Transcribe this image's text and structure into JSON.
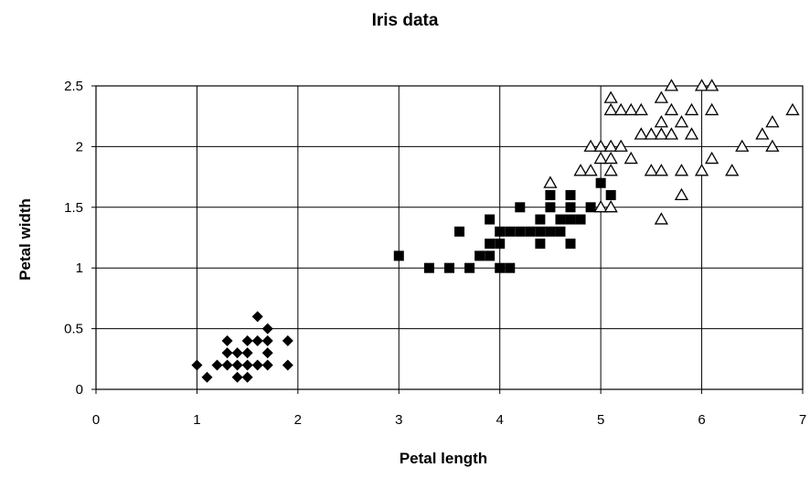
{
  "chart_data": {
    "type": "scatter",
    "title": "Iris data",
    "xlabel": "Petal length",
    "ylabel": "Petal width",
    "xlim": [
      0,
      7
    ],
    "ylim": [
      0,
      2.5
    ],
    "xticks": [
      "0",
      "1",
      "2",
      "3",
      "4",
      "5",
      "6",
      "7"
    ],
    "yticks": [
      "0",
      "0.5",
      "1",
      "1.5",
      "2",
      "2.5"
    ],
    "grid": true,
    "legend": "none",
    "series": [
      {
        "marker": "diamond-filled",
        "color": "#000000",
        "points": [
          [
            1.0,
            0.2
          ],
          [
            1.1,
            0.1
          ],
          [
            1.2,
            0.2
          ],
          [
            1.3,
            0.2
          ],
          [
            1.3,
            0.3
          ],
          [
            1.3,
            0.4
          ],
          [
            1.4,
            0.1
          ],
          [
            1.4,
            0.2
          ],
          [
            1.4,
            0.3
          ],
          [
            1.5,
            0.1
          ],
          [
            1.5,
            0.2
          ],
          [
            1.5,
            0.3
          ],
          [
            1.5,
            0.4
          ],
          [
            1.6,
            0.2
          ],
          [
            1.6,
            0.4
          ],
          [
            1.6,
            0.6
          ],
          [
            1.7,
            0.2
          ],
          [
            1.7,
            0.3
          ],
          [
            1.7,
            0.4
          ],
          [
            1.7,
            0.5
          ],
          [
            1.9,
            0.2
          ],
          [
            1.9,
            0.4
          ]
        ]
      },
      {
        "marker": "square-filled",
        "color": "#000000",
        "points": [
          [
            3.0,
            1.1
          ],
          [
            3.3,
            1.0
          ],
          [
            3.5,
            1.0
          ],
          [
            3.6,
            1.3
          ],
          [
            3.7,
            1.0
          ],
          [
            3.8,
            1.1
          ],
          [
            3.9,
            1.1
          ],
          [
            3.9,
            1.2
          ],
          [
            3.9,
            1.4
          ],
          [
            4.0,
            1.0
          ],
          [
            4.0,
            1.2
          ],
          [
            4.0,
            1.3
          ],
          [
            4.1,
            1.0
          ],
          [
            4.1,
            1.3
          ],
          [
            4.2,
            1.3
          ],
          [
            4.2,
            1.5
          ],
          [
            4.3,
            1.3
          ],
          [
            4.4,
            1.2
          ],
          [
            4.4,
            1.3
          ],
          [
            4.4,
            1.4
          ],
          [
            4.5,
            1.3
          ],
          [
            4.5,
            1.5
          ],
          [
            4.5,
            1.6
          ],
          [
            4.6,
            1.3
          ],
          [
            4.6,
            1.4
          ],
          [
            4.7,
            1.2
          ],
          [
            4.7,
            1.4
          ],
          [
            4.7,
            1.5
          ],
          [
            4.7,
            1.6
          ],
          [
            4.8,
            1.4
          ],
          [
            4.9,
            1.5
          ],
          [
            5.0,
            1.7
          ],
          [
            5.1,
            1.6
          ]
        ]
      },
      {
        "marker": "triangle-open",
        "color": "#000000",
        "points": [
          [
            4.5,
            1.7
          ],
          [
            4.8,
            1.8
          ],
          [
            4.9,
            1.8
          ],
          [
            4.9,
            2.0
          ],
          [
            5.0,
            1.5
          ],
          [
            5.0,
            1.9
          ],
          [
            5.0,
            2.0
          ],
          [
            5.1,
            1.5
          ],
          [
            5.1,
            1.8
          ],
          [
            5.1,
            1.9
          ],
          [
            5.1,
            2.0
          ],
          [
            5.1,
            2.3
          ],
          [
            5.1,
            2.4
          ],
          [
            5.2,
            2.0
          ],
          [
            5.2,
            2.3
          ],
          [
            5.3,
            1.9
          ],
          [
            5.3,
            2.3
          ],
          [
            5.4,
            2.1
          ],
          [
            5.4,
            2.3
          ],
          [
            5.5,
            1.8
          ],
          [
            5.5,
            2.1
          ],
          [
            5.6,
            1.4
          ],
          [
            5.6,
            1.8
          ],
          [
            5.6,
            2.1
          ],
          [
            5.6,
            2.2
          ],
          [
            5.6,
            2.4
          ],
          [
            5.7,
            2.1
          ],
          [
            5.7,
            2.3
          ],
          [
            5.7,
            2.5
          ],
          [
            5.8,
            1.6
          ],
          [
            5.8,
            1.8
          ],
          [
            5.8,
            2.2
          ],
          [
            5.9,
            2.1
          ],
          [
            5.9,
            2.3
          ],
          [
            6.0,
            1.8
          ],
          [
            6.0,
            2.5
          ],
          [
            6.1,
            1.9
          ],
          [
            6.1,
            2.3
          ],
          [
            6.1,
            2.5
          ],
          [
            6.3,
            1.8
          ],
          [
            6.4,
            2.0
          ],
          [
            6.6,
            2.1
          ],
          [
            6.7,
            2.0
          ],
          [
            6.7,
            2.2
          ],
          [
            6.9,
            2.3
          ]
        ]
      }
    ]
  }
}
